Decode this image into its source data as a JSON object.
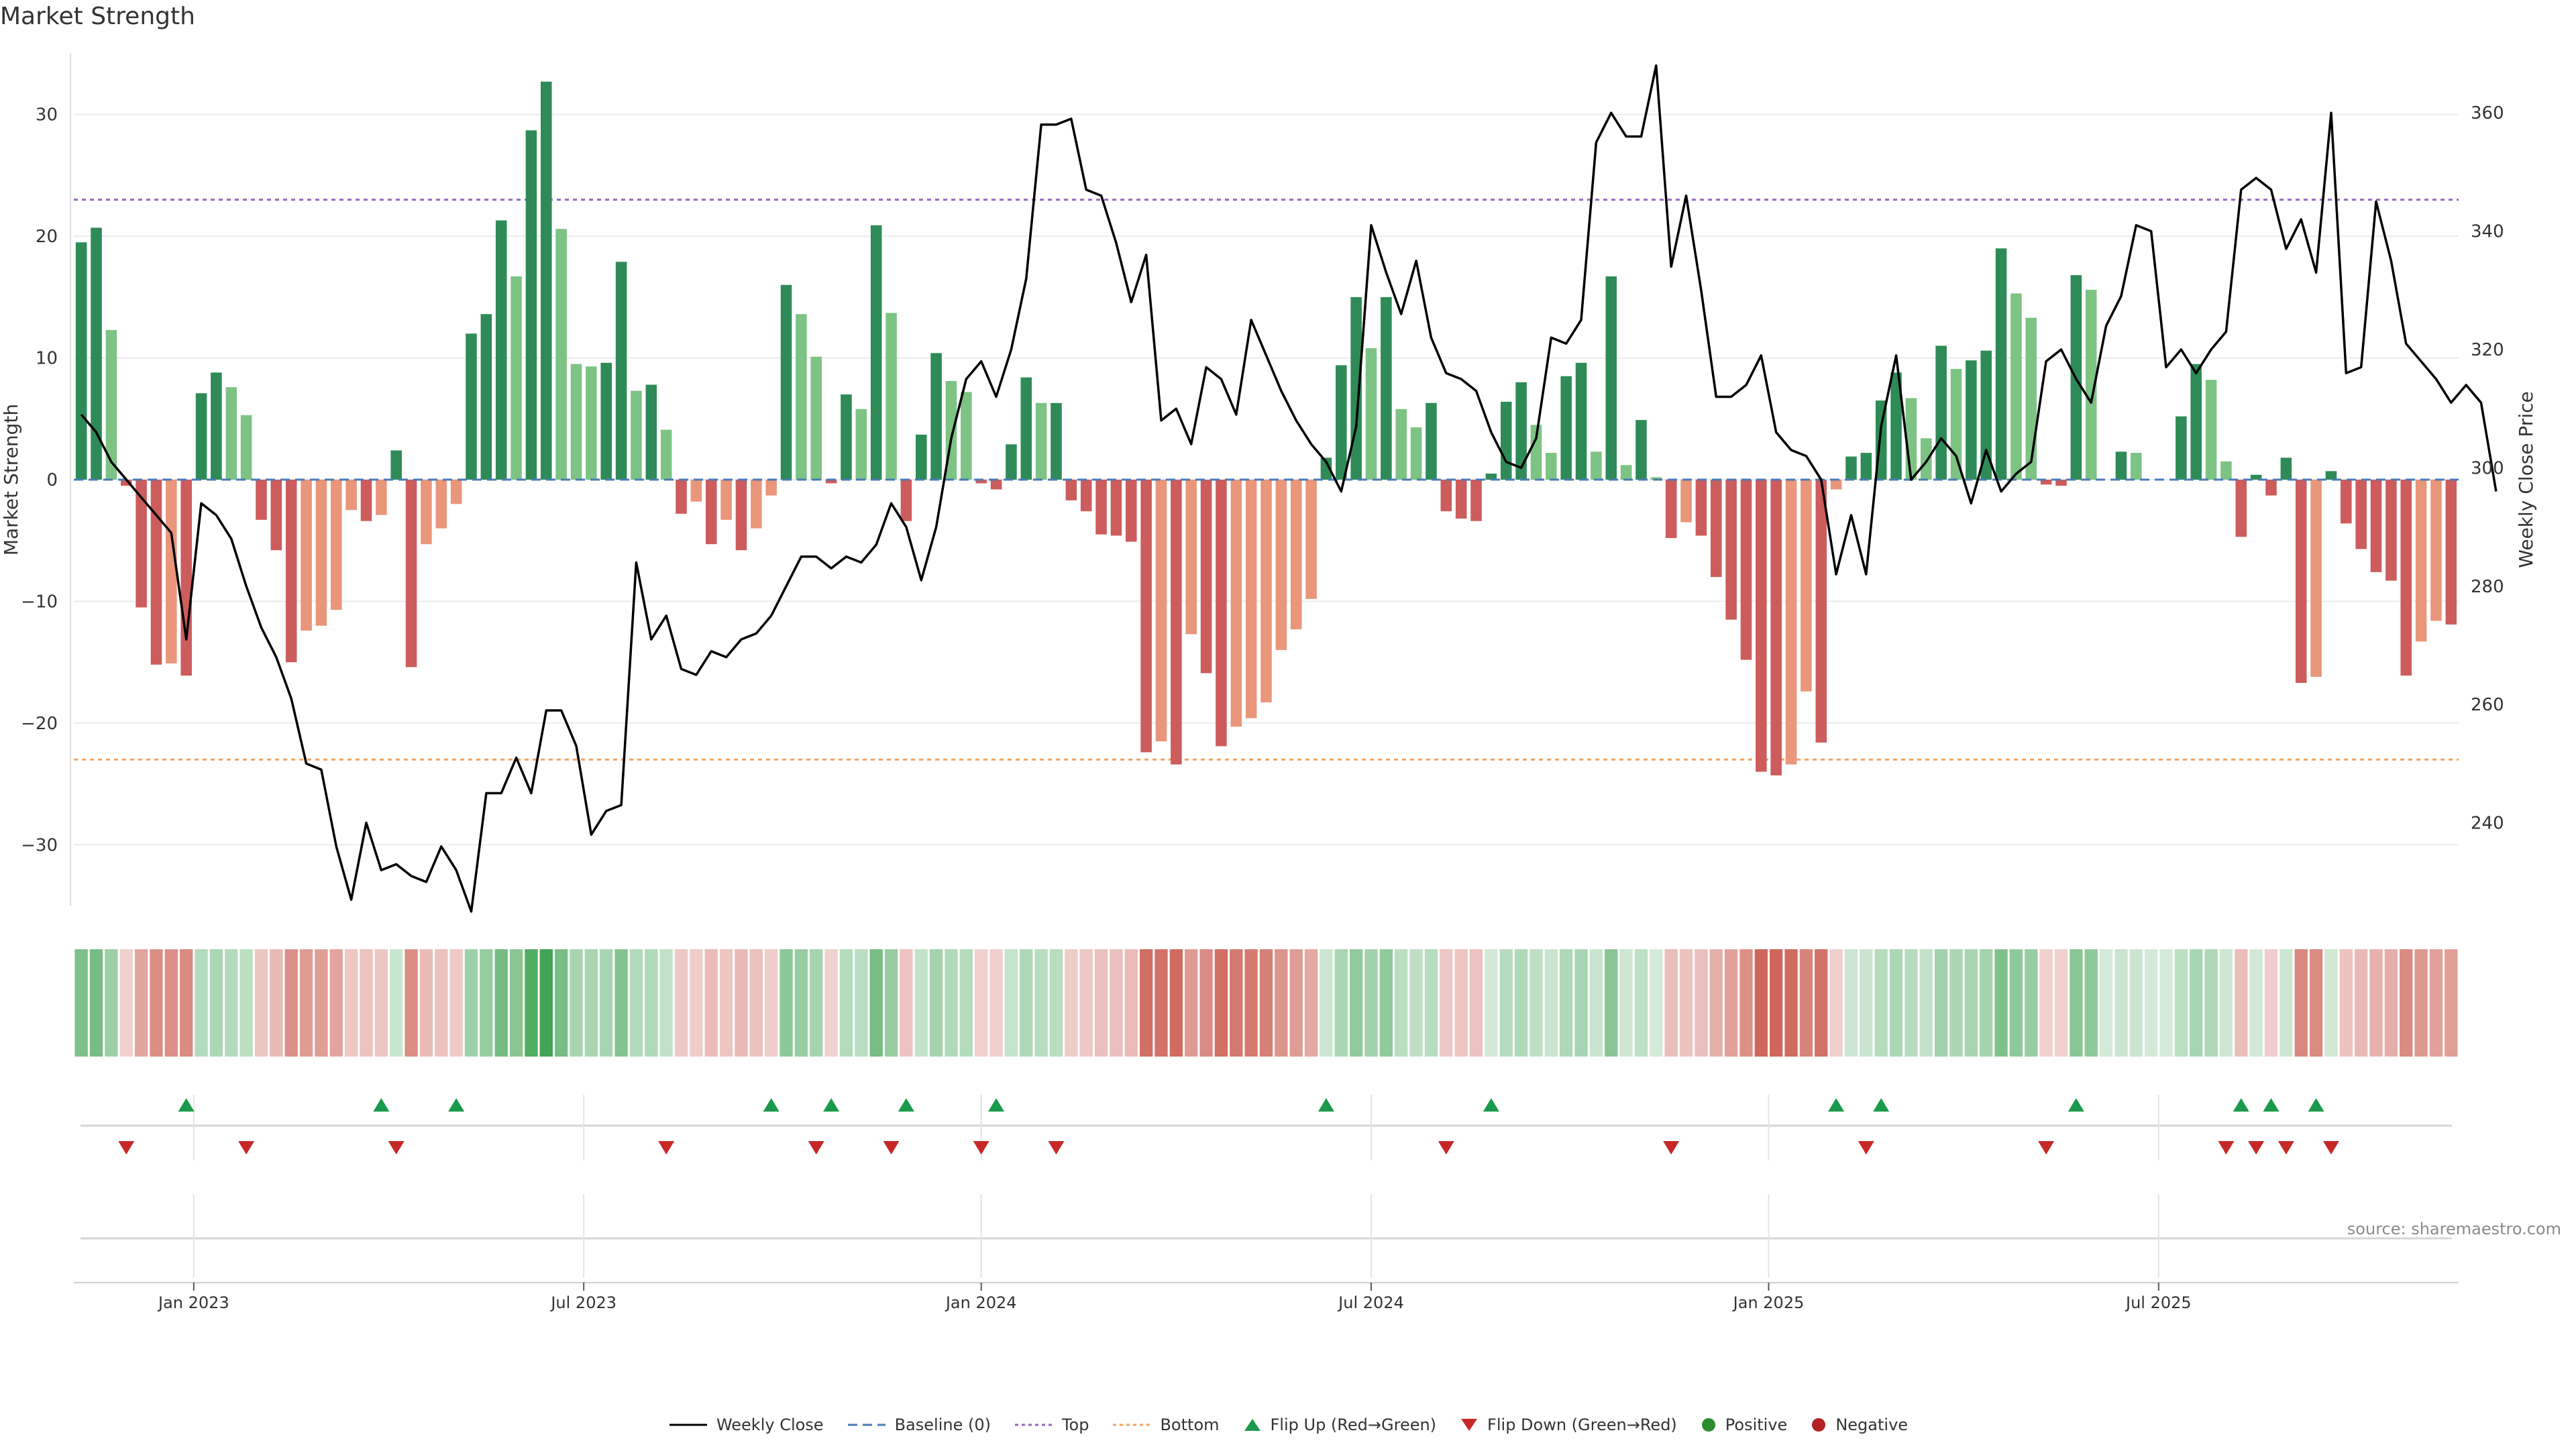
{
  "title": "Market Strength",
  "source": "source: sharemaestro.com",
  "legend": {
    "weekly_close": "Weekly Close",
    "baseline": "Baseline (0)",
    "top": "Top",
    "bottom": "Bottom",
    "flip_up": "Flip Up (Red→Green)",
    "flip_down": "Flip Down (Green→Red)",
    "positive": "Positive",
    "negative": "Negative"
  },
  "colors": {
    "pos_strong": "#2e8b57",
    "pos_light": "#7dc383",
    "neg_strong": "#cd5c5c",
    "neg_light": "#e9967a",
    "price_line": "#000000",
    "baseline": "#4a7bb7",
    "top_line": "#9467bd",
    "bottom_line": "#f4a460",
    "flip_up": "#1a9a4a",
    "flip_down": "#c62828",
    "positive_dot": "#2e8b2e",
    "negative_dot": "#b22222"
  },
  "chart_data": {
    "type": "bar",
    "title": "Market Strength",
    "ylabel_left": "Market Strength",
    "ylabel_right": "Weekly Close Price",
    "left_ylim": [
      -35,
      35
    ],
    "left_ticks": [
      -30,
      -20,
      -10,
      0,
      10,
      20,
      30
    ],
    "right_ylim": [
      226,
      370
    ],
    "right_ticks": [
      240,
      260,
      280,
      300,
      320,
      340,
      360
    ],
    "top_threshold": 23,
    "bottom_threshold": -23,
    "x_tick_labels": [
      "Jan 2023",
      "Jul 2023",
      "Jan 2024",
      "Jul 2024",
      "Jan 2025",
      "Jul 2025"
    ],
    "x_tick_weeks": [
      8,
      34,
      60.5,
      86.5,
      113,
      139
    ],
    "grid": true,
    "legend_position": "bottom-center",
    "strength": [
      19.5,
      20.7,
      12.3,
      -0.5,
      -10.5,
      -15.2,
      -15.1,
      -16.1,
      7.1,
      8.8,
      7.6,
      5.3,
      -3.3,
      -5.8,
      -15.0,
      -12.4,
      -12.0,
      -10.7,
      -2.5,
      -3.4,
      -2.9,
      2.4,
      -15.4,
      -5.3,
      -4.0,
      -2.0,
      12.0,
      13.6,
      21.3,
      16.7,
      28.7,
      32.7,
      20.6,
      9.5,
      9.3,
      9.6,
      17.9,
      7.3,
      7.8,
      4.1,
      -2.8,
      -1.8,
      -5.3,
      -3.3,
      -5.8,
      -4.0,
      -1.3,
      16.0,
      13.6,
      10.1,
      -0.3,
      7.0,
      5.8,
      20.9,
      13.7,
      -3.4,
      3.7,
      10.4,
      8.1,
      7.2,
      -0.3,
      -0.8,
      2.9,
      8.4,
      6.3,
      6.3,
      -1.7,
      -2.6,
      -4.5,
      -4.6,
      -5.1,
      -22.4,
      -21.5,
      -23.4,
      -12.7,
      -15.9,
      -21.9,
      -20.3,
      -19.6,
      -18.3,
      -14.0,
      -12.3,
      -9.8,
      1.8,
      9.4,
      15.0,
      10.8,
      15.0,
      5.8,
      4.3,
      6.3,
      -2.6,
      -3.2,
      -3.4,
      0.5,
      6.4,
      8.0,
      4.5,
      2.2,
      8.5,
      9.6,
      2.3,
      16.7,
      1.2,
      4.9,
      0.2,
      -4.8,
      -3.5,
      -4.6,
      -8.0,
      -11.5,
      -14.8,
      -24.0,
      -24.3,
      -23.4,
      -17.4,
      -21.6,
      -0.8,
      1.9,
      2.2,
      6.5,
      8.8,
      6.7,
      3.4,
      11.0,
      9.1,
      9.8,
      10.6,
      19.0,
      15.3,
      13.3,
      -0.4,
      -0.5,
      16.8,
      15.6,
      0.0,
      2.3,
      2.2,
      0.0,
      0.0,
      5.2,
      9.5,
      8.2,
      1.5,
      -4.7,
      0.4,
      -1.3,
      1.8,
      -16.7,
      -16.2,
      0.7,
      -3.6,
      -5.7,
      -7.6,
      -8.3,
      -16.1,
      -13.3,
      -11.6,
      -11.9
    ],
    "weekly_close": [
      309,
      306,
      301,
      298,
      295,
      292,
      289,
      271,
      294,
      292,
      288,
      280,
      273,
      268,
      261,
      250,
      249,
      236,
      227,
      240,
      232,
      233,
      231,
      230,
      236,
      232,
      225,
      245,
      245,
      251,
      245,
      259,
      259,
      253,
      238,
      242,
      243,
      284,
      271,
      275,
      266,
      265,
      269,
      268,
      271,
      272,
      275,
      280,
      285,
      285,
      283,
      285,
      284,
      287,
      294,
      290,
      281,
      290,
      305,
      315,
      318,
      312,
      320,
      332,
      358,
      358,
      359,
      347,
      346,
      338,
      328,
      336,
      308,
      310,
      304,
      317,
      315,
      309,
      325,
      319,
      313,
      308,
      304,
      301,
      296,
      307,
      341,
      333,
      326,
      335,
      322,
      316,
      315,
      313,
      306,
      301,
      300,
      305,
      322,
      321,
      325,
      355,
      360,
      356,
      356,
      368,
      334,
      346,
      330,
      312,
      312,
      314,
      319,
      306,
      303,
      302,
      298,
      282,
      292,
      282,
      307,
      319,
      298,
      301,
      305,
      302,
      294,
      303,
      296,
      299,
      301,
      318,
      320,
      315,
      311,
      324,
      329,
      341,
      340,
      317,
      320,
      316,
      320,
      323,
      347,
      349,
      347,
      337,
      342,
      333,
      360,
      316,
      317,
      345,
      335,
      321,
      318,
      315,
      311,
      314,
      311,
      296
    ],
    "flip_up_weeks": [
      7,
      20,
      25,
      46,
      50,
      55,
      61,
      83,
      94,
      117,
      120,
      133,
      144,
      146,
      149
    ],
    "flip_down_weeks": [
      3,
      11,
      21,
      39,
      49,
      54,
      60,
      65,
      91,
      106,
      119,
      131,
      143,
      145,
      147,
      150
    ]
  }
}
